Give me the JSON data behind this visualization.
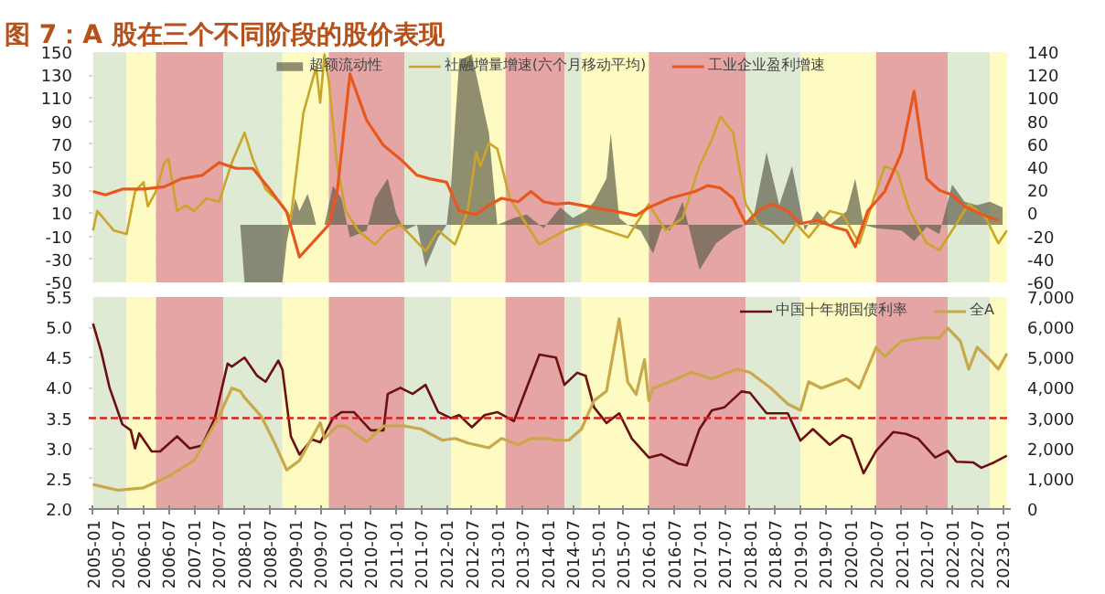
{
  "chart_data": [
    {
      "type": "line",
      "title": "图 7：A 股在三个不同阶段的股价表现",
      "xlim": [
        "2004-12",
        "2023-03"
      ],
      "ylim": [
        -50,
        150
      ],
      "yticks": [
        -50,
        -30,
        -10,
        10,
        30,
        50,
        70,
        90,
        110,
        130,
        150
      ],
      "y2lim": [
        -60,
        140
      ],
      "y2ticks": [
        -60,
        -40,
        -20,
        0,
        20,
        40,
        60,
        80,
        100,
        120,
        140
      ],
      "tick_labels": "y",
      "grid": "y",
      "legend": "top",
      "bands": [
        {
          "axis": "x",
          "from": "2005-01",
          "to": "2005-09",
          "color": "#dfead5"
        },
        {
          "axis": "x",
          "from": "2005-09",
          "to": "2006-04",
          "color": "#fdfbc2"
        },
        {
          "axis": "x",
          "from": "2006-04",
          "to": "2007-08",
          "color": "#e6a5a5"
        },
        {
          "axis": "x",
          "from": "2007-08",
          "to": "2008-10",
          "color": "#dfead5"
        },
        {
          "axis": "x",
          "from": "2008-10",
          "to": "2009-09",
          "color": "#fdfbc2"
        },
        {
          "axis": "x",
          "from": "2009-09",
          "to": "2011-03",
          "color": "#e6a5a5"
        },
        {
          "axis": "x",
          "from": "2011-03",
          "to": "2012-02",
          "color": "#dfead5"
        },
        {
          "axis": "x",
          "from": "2012-02",
          "to": "2013-03",
          "color": "#fdfbc2"
        },
        {
          "axis": "x",
          "from": "2013-03",
          "to": "2014-05",
          "color": "#e6a5a5"
        },
        {
          "axis": "x",
          "from": "2014-05",
          "to": "2014-09",
          "color": "#dfead5"
        },
        {
          "axis": "x",
          "from": "2014-09",
          "to": "2016-01",
          "color": "#fdfbc2"
        },
        {
          "axis": "x",
          "from": "2016-01",
          "to": "2017-12",
          "color": "#e6a5a5"
        },
        {
          "axis": "x",
          "from": "2017-12",
          "to": "2019-01",
          "color": "#dfead5"
        },
        {
          "axis": "x",
          "from": "2019-01",
          "to": "2020-07",
          "color": "#fdfbc2"
        },
        {
          "axis": "x",
          "from": "2020-07",
          "to": "2021-12",
          "color": "#e6a5a5"
        },
        {
          "axis": "x",
          "from": "2021-12",
          "to": "2022-10",
          "color": "#dfead5"
        },
        {
          "axis": "x",
          "from": "2022-10",
          "to": "2023-02",
          "color": "#fdfbc2"
        }
      ],
      "series": [
        {
          "name": "超额流动性",
          "type": "area",
          "color": "#5f5f4c",
          "x": [
            "2007-12",
            "2008-01",
            "2008-10",
            "2008-11",
            "2009-01",
            "2009-02",
            "2009-04",
            "2009-05",
            "2009-06",
            "2009-08",
            "2009-10",
            "2009-12",
            "2010-02",
            "2010-06",
            "2010-08",
            "2010-11",
            "2011-01",
            "2011-03",
            "2011-06",
            "2011-08",
            "2011-11",
            "2012-01",
            "2012-02",
            "2012-04",
            "2012-07",
            "2012-11",
            "2013-01",
            "2013-05",
            "2013-08",
            "2013-12",
            "2014-04",
            "2014-07",
            "2014-10",
            "2014-12",
            "2015-03",
            "2015-04",
            "2015-06",
            "2015-08",
            "2015-11",
            "2016-02",
            "2016-04",
            "2016-06",
            "2016-09",
            "2017-01",
            "2017-05",
            "2017-09",
            "2017-11",
            "2018-02",
            "2018-05",
            "2018-08",
            "2018-11",
            "2019-02",
            "2019-05",
            "2019-08",
            "2019-12",
            "2020-02",
            "2020-04",
            "2020-07",
            "2021-01",
            "2021-04",
            "2021-07",
            "2021-10",
            "2022-01",
            "2022-04",
            "2022-07",
            "2022-10",
            "2023-01"
          ],
          "values": [
            0,
            -50,
            -50,
            -15,
            23,
            12,
            27,
            15,
            0,
            0,
            34,
            23,
            -11,
            -5,
            23,
            40,
            10,
            -5,
            0,
            -37,
            -11,
            0,
            34,
            143,
            148,
            80,
            0,
            6,
            9,
            -3,
            15,
            6,
            12,
            20,
            40,
            80,
            6,
            0,
            -5,
            -25,
            -3,
            -5,
            20,
            -39,
            -16,
            -5,
            -2,
            10,
            63,
            17,
            51,
            -5,
            12,
            0,
            12,
            40,
            0,
            -3,
            -5,
            -14,
            -2,
            -8,
            35,
            20,
            17,
            20,
            15
          ]
        },
        {
          "name": "社融增量增速(六个月移动平均)",
          "color": "#c9a52a",
          "x": [
            "2005-01",
            "2005-02",
            "2005-06",
            "2005-09",
            "2005-11",
            "2006-01",
            "2006-02",
            "2006-04",
            "2006-06",
            "2006-07",
            "2006-09",
            "2006-11",
            "2007-01",
            "2007-04",
            "2007-07",
            "2007-10",
            "2008-01",
            "2008-03",
            "2008-06",
            "2008-10",
            "2008-12",
            "2009-03",
            "2009-06",
            "2009-07",
            "2009-08",
            "2009-09",
            "2009-11",
            "2010-01",
            "2010-04",
            "2010-08",
            "2010-11",
            "2011-02",
            "2011-05",
            "2011-08",
            "2011-11",
            "2012-03",
            "2012-06",
            "2012-08",
            "2012-09",
            "2012-11",
            "2013-01",
            "2013-04",
            "2013-08",
            "2013-11",
            "2014-02",
            "2014-05",
            "2014-10",
            "2015-03",
            "2015-08",
            "2016-01",
            "2016-05",
            "2016-09",
            "2017-01",
            "2017-04",
            "2017-06",
            "2017-09",
            "2017-12",
            "2018-03",
            "2018-06",
            "2018-09",
            "2018-12",
            "2019-03",
            "2019-08",
            "2019-11",
            "2020-03",
            "2020-07",
            "2020-09",
            "2020-12",
            "2021-03",
            "2021-07",
            "2021-10",
            "2022-01",
            "2022-05",
            "2022-09",
            "2022-12",
            "2023-02"
          ],
          "values": [
            -5,
            12,
            -5,
            -8,
            29,
            37,
            16,
            29,
            54,
            57,
            12,
            17,
            12,
            23,
            20,
            54,
            80,
            57,
            31,
            17,
            6,
            97,
            137,
            106,
            148,
            125,
            51,
            12,
            -5,
            -17,
            -5,
            0,
            -11,
            -23,
            -5,
            -17,
            12,
            63,
            51,
            71,
            66,
            23,
            0,
            -17,
            -11,
            -5,
            1,
            -5,
            -11,
            18,
            -5,
            6,
            51,
            74,
            94,
            80,
            18,
            1,
            -5,
            -16,
            1,
            -11,
            12,
            9,
            -16,
            29,
            51,
            46,
            12,
            -16,
            -22,
            -5,
            18,
            6,
            -16,
            -5
          ]
        },
        {
          "name": "工业企业盈利增速",
          "axis": "y2",
          "color": "#e8581e",
          "x": [
            "2005-01",
            "2005-04",
            "2005-08",
            "2006-01",
            "2006-06",
            "2006-10",
            "2007-03",
            "2007-07",
            "2007-11",
            "2008-03",
            "2008-07",
            "2008-11",
            "2009-02",
            "2009-09",
            "2009-11",
            "2010-02",
            "2010-06",
            "2010-10",
            "2011-02",
            "2011-06",
            "2011-09",
            "2012-01",
            "2012-04",
            "2012-08",
            "2012-11",
            "2013-02",
            "2013-06",
            "2013-09",
            "2013-12",
            "2014-03",
            "2014-06",
            "2014-12",
            "2015-06",
            "2015-10",
            "2016-01",
            "2016-06",
            "2016-12",
            "2017-03",
            "2017-06",
            "2017-09",
            "2017-12",
            "2018-03",
            "2018-06",
            "2018-10",
            "2019-01",
            "2019-05",
            "2019-09",
            "2019-12",
            "2020-02",
            "2020-05",
            "2020-09",
            "2021-01",
            "2021-04",
            "2021-07",
            "2021-10",
            "2022-01",
            "2022-04",
            "2022-08",
            "2022-12"
          ],
          "values": [
            19,
            16,
            21,
            21,
            23,
            30,
            33,
            44,
            39,
            39,
            21,
            1,
            -38,
            -10,
            19,
            121,
            81,
            59,
            47,
            33,
            30,
            27,
            2,
            -1,
            7,
            13,
            10,
            19,
            10,
            8,
            9,
            5,
            1,
            -2,
            5,
            13,
            19,
            24,
            22,
            13,
            -9,
            2,
            8,
            2,
            -9,
            -6,
            -12,
            -15,
            -29,
            2,
            19,
            53,
            106,
            30,
            20,
            16,
            6,
            -1,
            -6
          ]
        }
      ]
    },
    {
      "type": "line",
      "xlim": [
        "2004-12",
        "2023-03"
      ],
      "xticks": [
        "2005-01",
        "2005-07",
        "2006-01",
        "2006-07",
        "2007-01",
        "2007-07",
        "2008-01",
        "2008-07",
        "2009-01",
        "2009-07",
        "2010-01",
        "2010-07",
        "2011-01",
        "2011-07",
        "2012-01",
        "2012-07",
        "2013-01",
        "2013-07",
        "2014-01",
        "2014-07",
        "2015-01",
        "2015-07",
        "2016-01",
        "2016-07",
        "2017-01",
        "2017-07",
        "2018-01",
        "2018-07",
        "2019-01",
        "2019-07",
        "2020-01",
        "2020-07",
        "2021-01",
        "2021-07",
        "2022-01",
        "2022-07",
        "2023-01"
      ],
      "ylim": [
        2.0,
        5.5
      ],
      "yticks": [
        {
          "value": 2,
          "label": "2.0"
        },
        2.5,
        {
          "value": 3,
          "label": "3.0"
        },
        3.5,
        {
          "value": 4,
          "label": "4.0"
        },
        4.5,
        {
          "value": 5,
          "label": "5.0"
        },
        5.5
      ],
      "y2lim": [
        0,
        7000
      ],
      "y2ticks": [
        {
          "value": 0,
          "label": "0"
        },
        {
          "value": 1000,
          "label": "1,000"
        },
        {
          "value": 2000,
          "label": "2,000"
        },
        {
          "value": 3000,
          "label": "3,000"
        },
        {
          "value": 4000,
          "label": "4,000"
        },
        {
          "value": 5000,
          "label": "5,000"
        },
        {
          "value": 6000,
          "label": "6,000"
        },
        {
          "value": 7000,
          "label": "7,000"
        }
      ],
      "grid": "y",
      "legend": "top right",
      "ref_lines": [
        {
          "axis": "y",
          "value": 3.5,
          "color": "#e02020",
          "line_style": "dashed"
        }
      ],
      "bands": [
        {
          "axis": "x",
          "from": "2005-01",
          "to": "2005-09",
          "color": "#dfead5"
        },
        {
          "axis": "x",
          "from": "2005-09",
          "to": "2006-04",
          "color": "#fdfbc2"
        },
        {
          "axis": "x",
          "from": "2006-04",
          "to": "2007-08",
          "color": "#e6a5a5"
        },
        {
          "axis": "x",
          "from": "2007-08",
          "to": "2008-10",
          "color": "#dfead5"
        },
        {
          "axis": "x",
          "from": "2008-10",
          "to": "2009-09",
          "color": "#fdfbc2"
        },
        {
          "axis": "x",
          "from": "2009-09",
          "to": "2011-03",
          "color": "#e6a5a5"
        },
        {
          "axis": "x",
          "from": "2011-03",
          "to": "2012-02",
          "color": "#dfead5"
        },
        {
          "axis": "x",
          "from": "2012-02",
          "to": "2013-03",
          "color": "#fdfbc2"
        },
        {
          "axis": "x",
          "from": "2013-03",
          "to": "2014-05",
          "color": "#e6a5a5"
        },
        {
          "axis": "x",
          "from": "2014-05",
          "to": "2014-09",
          "color": "#dfead5"
        },
        {
          "axis": "x",
          "from": "2014-09",
          "to": "2016-01",
          "color": "#fdfbc2"
        },
        {
          "axis": "x",
          "from": "2016-01",
          "to": "2017-12",
          "color": "#e6a5a5"
        },
        {
          "axis": "x",
          "from": "2017-12",
          "to": "2019-01",
          "color": "#dfead5"
        },
        {
          "axis": "x",
          "from": "2019-01",
          "to": "2020-07",
          "color": "#fdfbc2"
        },
        {
          "axis": "x",
          "from": "2020-07",
          "to": "2021-12",
          "color": "#e6a5a5"
        },
        {
          "axis": "x",
          "from": "2021-12",
          "to": "2022-10",
          "color": "#dfead5"
        },
        {
          "axis": "x",
          "from": "2022-10",
          "to": "2023-02",
          "color": "#fdfbc2"
        }
      ],
      "series": [
        {
          "name": "中国十年期国债利率",
          "color": "#6b1010",
          "x": [
            "2005-01",
            "2005-03",
            "2005-05",
            "2005-08",
            "2005-10",
            "2005-11",
            "2005-12",
            "2006-03",
            "2006-05",
            "2006-09",
            "2006-12",
            "2007-03",
            "2007-06",
            "2007-09",
            "2007-10",
            "2008-01",
            "2008-04",
            "2008-06",
            "2008-09",
            "2008-10",
            "2008-12",
            "2009-02",
            "2009-05",
            "2009-07",
            "2009-10",
            "2009-12",
            "2010-03",
            "2010-07",
            "2010-10",
            "2010-11",
            "2011-02",
            "2011-05",
            "2011-08",
            "2011-11",
            "2012-02",
            "2012-04",
            "2012-07",
            "2012-10",
            "2013-01",
            "2013-05",
            "2013-08",
            "2013-11",
            "2014-03",
            "2014-05",
            "2014-08",
            "2014-10",
            "2014-12",
            "2015-03",
            "2015-06",
            "2015-09",
            "2016-01",
            "2016-04",
            "2016-08",
            "2016-10",
            "2017-01",
            "2017-04",
            "2017-07",
            "2017-11",
            "2018-01",
            "2018-05",
            "2018-08",
            "2018-10",
            "2019-01",
            "2019-04",
            "2019-08",
            "2019-11",
            "2020-01",
            "2020-04",
            "2020-07",
            "2020-11",
            "2021-02",
            "2021-05",
            "2021-09",
            "2021-12",
            "2022-02",
            "2022-06",
            "2022-08",
            "2022-11",
            "2023-02"
          ],
          "values": [
            5.06,
            4.6,
            4.0,
            3.4,
            3.3,
            3.0,
            3.25,
            2.95,
            2.95,
            3.2,
            3.0,
            3.05,
            3.5,
            4.4,
            4.35,
            4.5,
            4.2,
            4.1,
            4.45,
            4.3,
            3.2,
            2.9,
            3.15,
            3.1,
            3.5,
            3.6,
            3.6,
            3.3,
            3.3,
            3.9,
            4.0,
            3.9,
            4.05,
            3.6,
            3.5,
            3.55,
            3.35,
            3.55,
            3.6,
            3.45,
            4.0,
            4.55,
            4.5,
            4.05,
            4.25,
            4.2,
            3.68,
            3.42,
            3.58,
            3.16,
            2.85,
            2.9,
            2.75,
            2.72,
            3.32,
            3.63,
            3.68,
            3.94,
            3.92,
            3.58,
            3.58,
            3.58,
            3.13,
            3.32,
            3.06,
            3.22,
            3.16,
            2.59,
            2.96,
            3.27,
            3.24,
            3.16,
            2.85,
            2.96,
            2.78,
            2.77,
            2.68,
            2.77,
            2.88
          ]
        },
        {
          "name": "全A",
          "axis": "y2",
          "color": "#c9a84c",
          "x": [
            "2005-01",
            "2005-07",
            "2006-01",
            "2006-07",
            "2007-01",
            "2007-07",
            "2007-10",
            "2007-12",
            "2008-01",
            "2008-05",
            "2008-08",
            "2008-11",
            "2009-02",
            "2009-07",
            "2009-08",
            "2009-11",
            "2010-01",
            "2010-06",
            "2010-10",
            "2011-03",
            "2011-07",
            "2011-12",
            "2012-03",
            "2012-06",
            "2012-11",
            "2013-02",
            "2013-06",
            "2013-09",
            "2014-01",
            "2014-03",
            "2014-06",
            "2014-09",
            "2014-12",
            "2015-03",
            "2015-06",
            "2015-08",
            "2015-10",
            "2015-12",
            "2016-01",
            "2016-02",
            "2016-06",
            "2016-11",
            "2017-04",
            "2017-10",
            "2018-01",
            "2018-06",
            "2018-10",
            "2019-01",
            "2019-03",
            "2019-06",
            "2019-12",
            "2020-03",
            "2020-07",
            "2020-09",
            "2021-01",
            "2021-06",
            "2021-10",
            "2021-12",
            "2022-03",
            "2022-05",
            "2022-07",
            "2022-10",
            "2022-12",
            "2023-02"
          ],
          "values": [
            810,
            620,
            700,
            1080,
            1600,
            3060,
            3990,
            3890,
            3680,
            3060,
            2220,
            1290,
            1600,
            2850,
            2330,
            2740,
            2740,
            2220,
            2740,
            2740,
            2640,
            2270,
            2330,
            2180,
            2020,
            2330,
            2120,
            2330,
            2330,
            2270,
            2270,
            2640,
            3580,
            3890,
            6280,
            4200,
            3780,
            4930,
            3580,
            3990,
            4200,
            4510,
            4300,
            4620,
            4510,
            3990,
            3470,
            3260,
            4200,
            3990,
            4300,
            3990,
            5340,
            5030,
            5550,
            5650,
            5650,
            5970,
            5550,
            4620,
            5340,
            4930,
            4620,
            5140
          ]
        }
      ]
    }
  ]
}
